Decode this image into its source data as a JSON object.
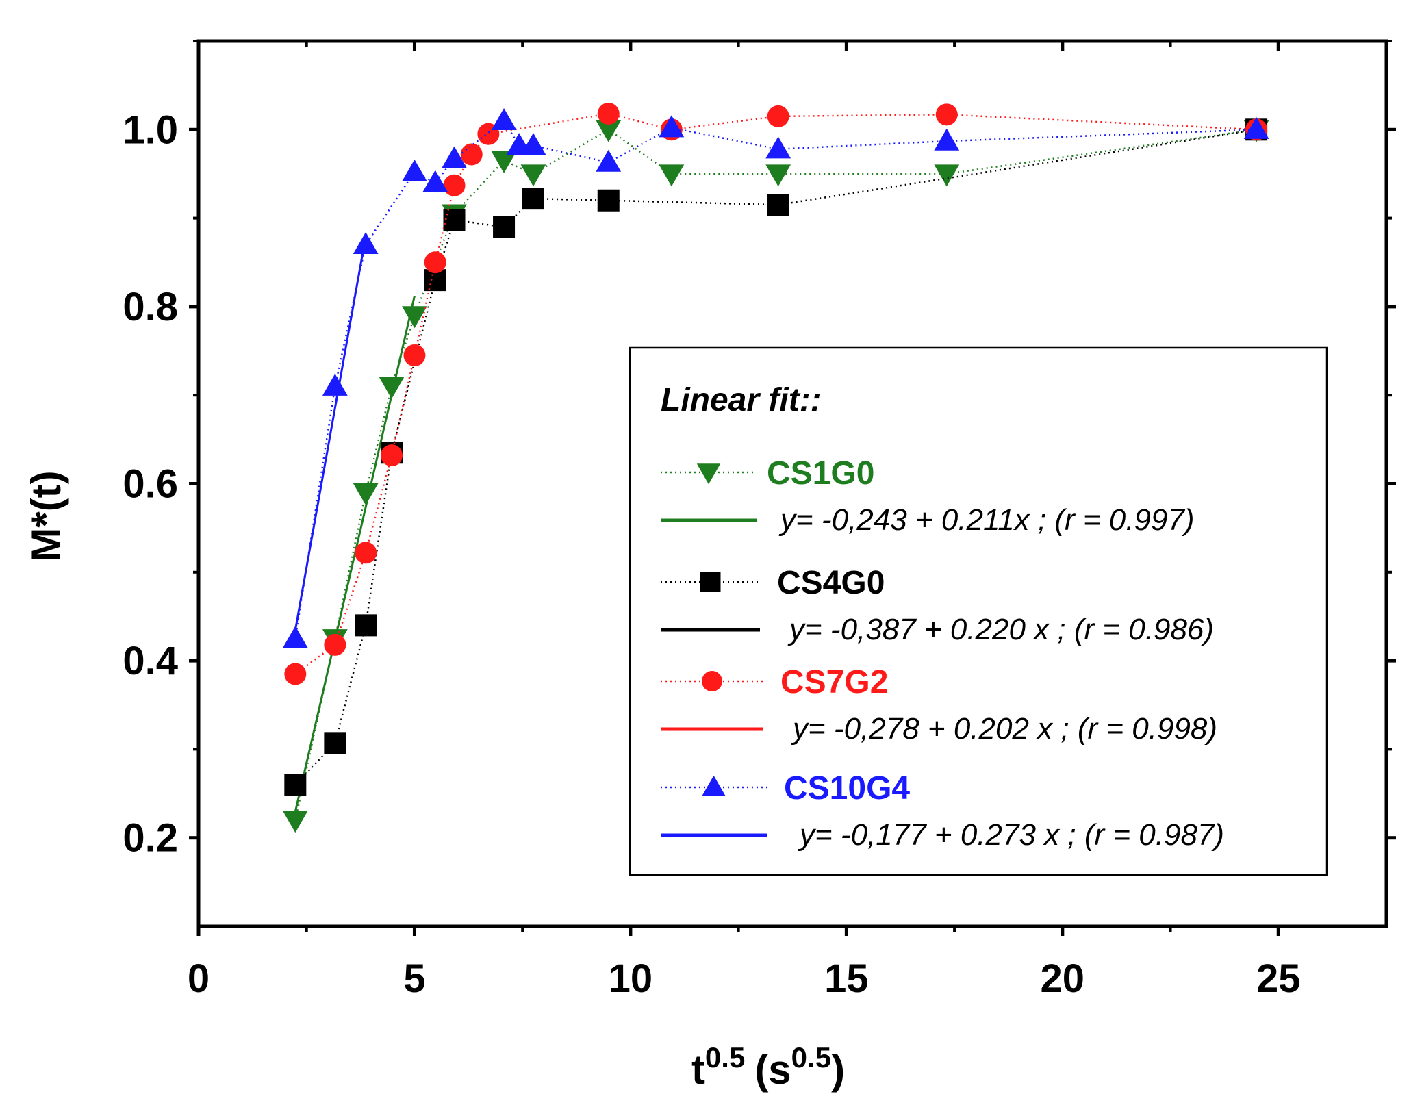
{
  "chart_data": {
    "type": "scatter",
    "title": "",
    "xlabel": "t",
    "xlabel_sup": "0.5",
    "xlabel_unit": "(s",
    "xlabel_unit_sup": "0.5",
    "xlabel_close": ")",
    "ylabel": "M*(t)",
    "xlim": [
      0,
      27.5
    ],
    "ylim": [
      0.1,
      1.1
    ],
    "x_ticks": [
      0,
      5,
      10,
      15,
      20,
      25
    ],
    "x_tick_labels": [
      "0",
      "5",
      "10",
      "15",
      "20",
      "25"
    ],
    "y_ticks": [
      0.2,
      0.4,
      0.6,
      0.8,
      1.0
    ],
    "y_tick_labels": [
      "0.2",
      "0.4",
      "0.6",
      "0.8",
      "1.0"
    ],
    "grid": false,
    "legend_placement": "center-right",
    "legend_title": "Linear fit::",
    "series": [
      {
        "name": "CS1G0",
        "color": "#1e7d1e",
        "marker": "triangle-down",
        "x": [
          2.24,
          3.16,
          3.87,
          4.47,
          5.0,
          5.92,
          7.07,
          7.75,
          9.49,
          10.95,
          13.42,
          17.32,
          24.49
        ],
        "y": [
          0.22,
          0.425,
          0.59,
          0.71,
          0.79,
          0.905,
          0.965,
          0.95,
          1.0,
          0.95,
          0.95,
          0.95,
          1.0
        ],
        "fit_equation": "y= -0,243 + 0.211x  ;  (r = 0.997)",
        "fit_range": [
          2.2,
          5.0
        ],
        "fit_intercept": -0.243,
        "fit_slope": 0.211
      },
      {
        "name": "CS4G0",
        "color": "#000000",
        "marker": "square",
        "x": [
          2.24,
          3.16,
          3.87,
          4.47,
          5.48,
          5.92,
          7.07,
          7.75,
          9.49,
          13.42,
          24.49
        ],
        "y": [
          0.26,
          0.307,
          0.44,
          0.635,
          0.83,
          0.898,
          0.89,
          0.922,
          0.92,
          0.915,
          1.0
        ],
        "fit_equation": "y= -0,387 + 0.220 x  ; (r = 0.986)"
      },
      {
        "name": "CS7G2",
        "color": "#ff1a1a",
        "marker": "circle",
        "x": [
          2.24,
          3.16,
          3.87,
          4.47,
          5.0,
          5.48,
          5.92,
          6.32,
          6.71,
          9.49,
          10.95,
          13.42,
          17.32,
          24.49
        ],
        "y": [
          0.385,
          0.418,
          0.522,
          0.632,
          0.745,
          0.85,
          0.937,
          0.972,
          0.995,
          1.018,
          1.0,
          1.015,
          1.017,
          1.0
        ],
        "fit_equation": "y= -0,278 + 0.202 x  ; (r = 0.998)"
      },
      {
        "name": "CS10G4",
        "color": "#1a1aff",
        "marker": "triangle-up",
        "x": [
          2.24,
          3.16,
          3.87,
          5.0,
          5.48,
          5.92,
          7.07,
          7.42,
          7.75,
          9.49,
          10.95,
          13.42,
          17.32,
          24.49
        ],
        "y": [
          0.425,
          0.71,
          0.87,
          0.952,
          0.94,
          0.967,
          1.01,
          0.982,
          0.982,
          0.963,
          1.002,
          0.978,
          0.987,
          1.0
        ],
        "fit_equation": "y= -0,177 + 0.273 x  ; (r = 0.987)",
        "fit_range": [
          2.24,
          3.87
        ],
        "fit_intercept": -0.177,
        "fit_slope": 0.273
      }
    ]
  }
}
